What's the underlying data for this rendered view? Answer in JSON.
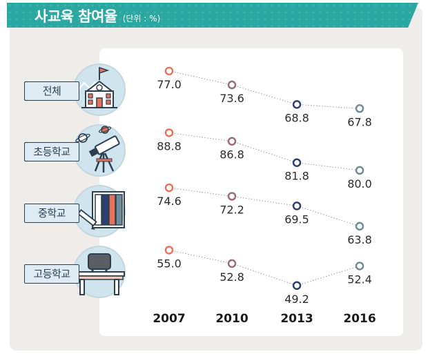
{
  "header": {
    "title": "사교육 참여율",
    "unit": "(단위 : %)"
  },
  "rows": [
    {
      "label": "전체",
      "icon": "school-building-icon"
    },
    {
      "label": "초등학교",
      "icon": "telescope-icon"
    },
    {
      "label": "중학교",
      "icon": "books-pencil-icon"
    },
    {
      "label": "고등학교",
      "icon": "desk-chair-icon"
    }
  ],
  "colors": {
    "2007": "#e8735a",
    "2010": "#9b6a7e",
    "2013": "#2f3e72",
    "2016": "#6f8c99",
    "teal": "#2aa7a1"
  },
  "chart_data": {
    "type": "line",
    "title": "사교육 참여율",
    "unit": "(단위 : %)",
    "x": [
      "2007",
      "2010",
      "2013",
      "2016"
    ],
    "series": [
      {
        "name": "전체",
        "values": [
          77.0,
          73.6,
          68.8,
          67.8
        ]
      },
      {
        "name": "초등학교",
        "values": [
          88.8,
          86.8,
          81.8,
          80.0
        ]
      },
      {
        "name": "중학교",
        "values": [
          74.6,
          72.2,
          69.5,
          63.8
        ]
      },
      {
        "name": "고등학교",
        "values": [
          55.0,
          52.8,
          49.2,
          52.4
        ]
      }
    ]
  }
}
